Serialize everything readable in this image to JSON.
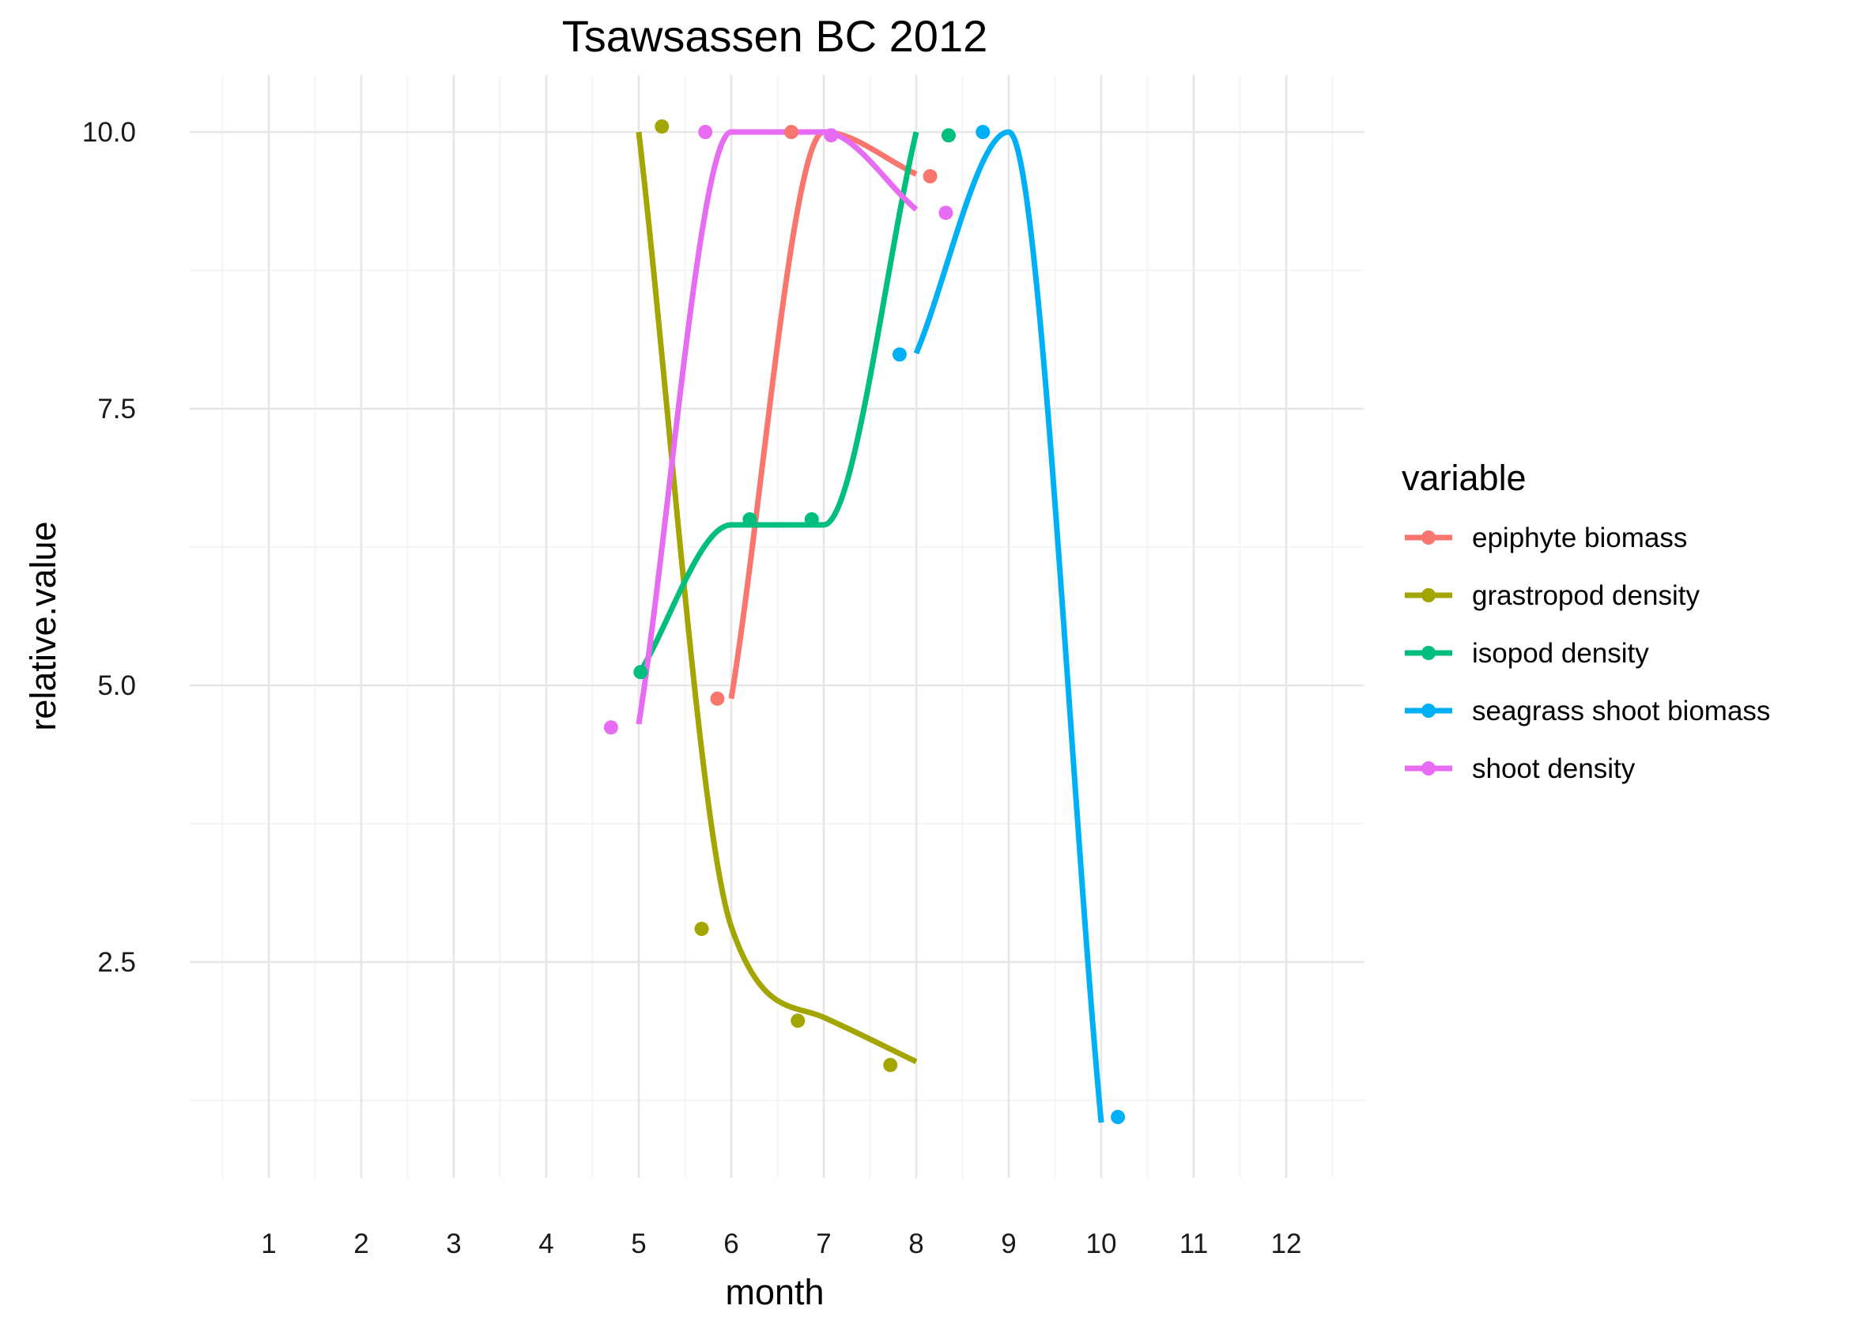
{
  "chart_data": {
    "type": "line",
    "title": "Tsawsassen BC 2012",
    "xlabel": "month",
    "ylabel": "relative.value",
    "xlim": [
      0.5,
      13.0
    ],
    "ylim": [
      0.7,
      10.6
    ],
    "x_ticks": [
      1,
      2,
      3,
      4,
      5,
      6,
      7,
      8,
      9,
      10,
      11,
      12
    ],
    "x_tick_labels": [
      "1",
      "2",
      "3",
      "4",
      "5",
      "6",
      "7",
      "8",
      "9",
      "10",
      "11",
      "12"
    ],
    "y_ticks": [
      2.5,
      5.0,
      7.5,
      10.0
    ],
    "y_tick_labels": [
      "2.5",
      "5.0",
      "7.5",
      "10.0"
    ],
    "grid": true,
    "legend": {
      "title": "variable",
      "position": "right"
    },
    "series": [
      {
        "name": "epiphyte biomass",
        "color": "#F8766D",
        "curve_x": [
          6,
          7,
          8
        ],
        "curve_y": [
          4.88,
          10.0,
          9.62
        ],
        "points": [
          [
            5.85,
            4.88
          ],
          [
            6.65,
            10.0
          ],
          [
            8.15,
            9.6
          ]
        ]
      },
      {
        "name": "grastropod density",
        "color": "#A3A500",
        "curve_x": [
          5,
          6,
          7,
          8
        ],
        "curve_y": [
          10.0,
          2.82,
          2.0,
          1.6
        ],
        "points": [
          [
            5.25,
            10.05
          ],
          [
            5.68,
            2.8
          ],
          [
            6.72,
            1.97
          ],
          [
            7.72,
            1.57
          ]
        ]
      },
      {
        "name": "isopod density",
        "color": "#00BF7D",
        "curve_x": [
          5,
          6,
          7,
          8
        ],
        "curve_y": [
          5.1,
          6.45,
          6.45,
          10.0
        ],
        "points": [
          [
            5.02,
            5.12
          ],
          [
            6.2,
            6.5
          ],
          [
            6.87,
            6.5
          ],
          [
            8.35,
            9.97
          ]
        ]
      },
      {
        "name": "seagrass shoot biomass",
        "color": "#00B0F6",
        "curve_x": [
          8,
          9,
          10
        ],
        "curve_y": [
          8.0,
          10.0,
          1.05
        ],
        "points": [
          [
            7.82,
            7.99
          ],
          [
            8.72,
            10.0
          ],
          [
            10.18,
            1.1
          ]
        ]
      },
      {
        "name": "shoot density",
        "color": "#E76BF3",
        "curve_x": [
          5,
          6,
          7,
          8
        ],
        "curve_y": [
          4.65,
          10.0,
          10.0,
          9.3
        ],
        "points": [
          [
            4.7,
            4.62
          ],
          [
            5.72,
            10.0
          ],
          [
            7.08,
            9.97
          ],
          [
            8.32,
            9.27
          ]
        ]
      }
    ]
  }
}
